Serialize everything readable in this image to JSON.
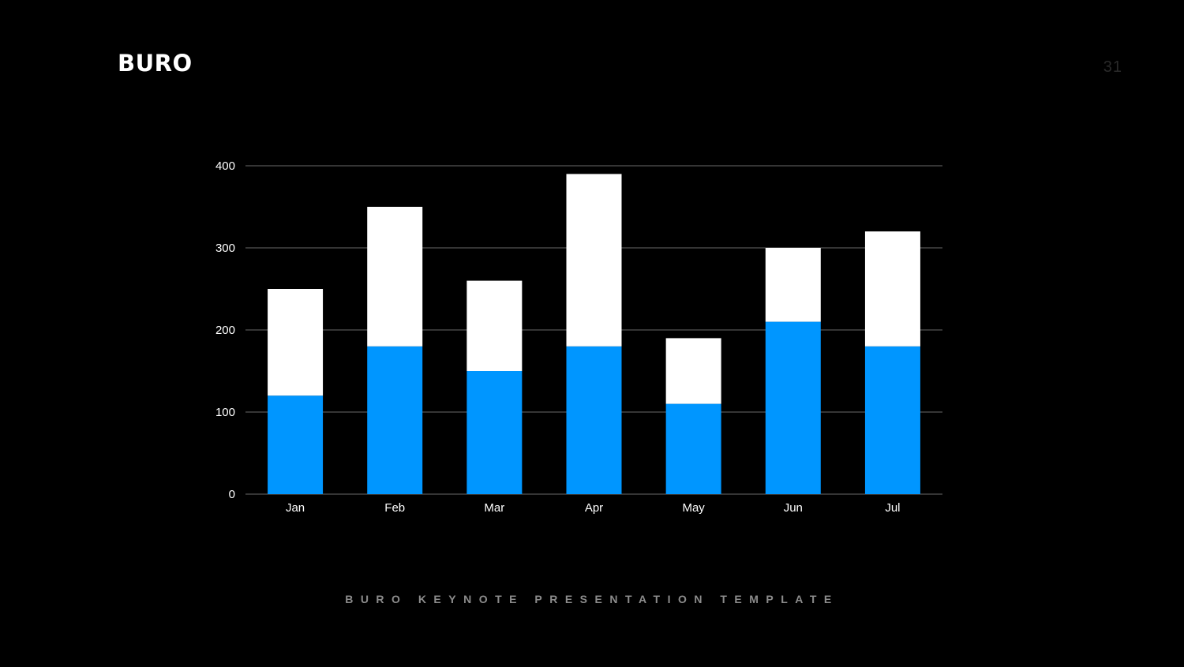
{
  "slide": {
    "brand": "BURO",
    "page_number": "31",
    "footer": "BURO KEYNOTE PRESENTATION TEMPLATE"
  },
  "colors": {
    "background": "#000000",
    "series_bottom": "#0096FF",
    "series_top": "#FFFFFF",
    "gridline": "#555555",
    "page_number": "#2a2a2a",
    "footer": "#8c8c8c"
  },
  "chart_data": {
    "type": "bar",
    "stacked": true,
    "categories": [
      "Jan",
      "Feb",
      "Mar",
      "Apr",
      "May",
      "Jun",
      "Jul"
    ],
    "series": [
      {
        "color": "#0096FF",
        "values": [
          120,
          180,
          150,
          180,
          110,
          210,
          180
        ]
      },
      {
        "color": "#FFFFFF",
        "values": [
          130,
          170,
          110,
          210,
          80,
          90,
          140
        ]
      }
    ],
    "ylim": [
      0,
      400
    ],
    "yticks": [
      0,
      100,
      200,
      300,
      400
    ],
    "grid": true,
    "legend": "none",
    "title": "",
    "xlabel": "",
    "ylabel": ""
  }
}
